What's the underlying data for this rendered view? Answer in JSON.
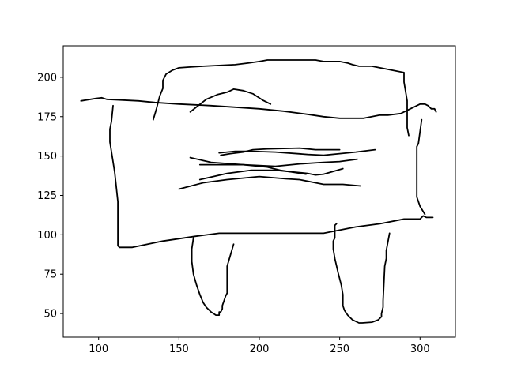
{
  "chart_data": {
    "type": "line",
    "title": "",
    "xlabel": "",
    "ylabel": "",
    "xlim": [
      78,
      322
    ],
    "ylim": [
      35,
      220
    ],
    "grid": false,
    "x_ticks": [
      100,
      150,
      200,
      250,
      300
    ],
    "y_ticks": [
      50,
      75,
      100,
      125,
      150,
      175,
      200
    ],
    "line_color": "#000000",
    "series": [
      {
        "x": [
          89,
          98,
          102,
          105,
          125,
          135,
          150,
          170,
          185,
          200,
          215,
          230,
          240,
          250,
          265,
          275,
          280,
          288,
          292,
          296,
          298,
          300,
          303,
          305,
          307,
          309,
          310
        ],
        "y": [
          185,
          186.5,
          187,
          186,
          185,
          184,
          183,
          182,
          181,
          180,
          178.5,
          176.5,
          175,
          174,
          174,
          176,
          176,
          177,
          179,
          181,
          182,
          183,
          183,
          182,
          180,
          180,
          178
        ]
      },
      {
        "x": [
          134,
          136,
          138,
          140,
          140,
          142,
          146,
          150,
          157,
          165,
          175,
          185,
          193,
          200,
          205,
          225,
          235,
          240,
          250,
          255,
          258,
          262,
          270,
          275,
          280,
          285,
          290,
          290,
          292,
          292,
          293
        ],
        "y": [
          173,
          180,
          188,
          193,
          198,
          202,
          204.5,
          206,
          206.5,
          207,
          207.5,
          208,
          209,
          210,
          211,
          211,
          211,
          210,
          210,
          209,
          208,
          207,
          207,
          206,
          205,
          204,
          203,
          197,
          185,
          168,
          163
        ]
      },
      {
        "x": [
          157,
          167,
          174,
          180,
          184,
          190,
          196,
          202,
          207
        ],
        "y": [
          178,
          186,
          189,
          190.5,
          192.5,
          191.5,
          189.5,
          185.5,
          183
        ]
      },
      {
        "x": [
          109,
          108,
          107,
          107,
          110,
          112,
          112,
          113,
          121,
          140,
          160,
          175,
          185,
          200,
          220,
          240,
          250,
          260,
          275,
          290,
          300,
          302,
          304,
          305,
          308
        ],
        "y": [
          182,
          172,
          167,
          159,
          140,
          121,
          93,
          92,
          92,
          96,
          99,
          101,
          101,
          101,
          101,
          101,
          103,
          105,
          107,
          110,
          110,
          112,
          111,
          111,
          111
        ]
      },
      {
        "x": [
          301,
          299,
          298,
          298,
          300,
          303
        ],
        "y": [
          173,
          158,
          156,
          124,
          118,
          113
        ]
      },
      {
        "x": [
          176,
          182,
          190,
          196,
          205,
          225,
          235,
          250
        ],
        "y": [
          150.5,
          151.5,
          152.5,
          154,
          154.5,
          155,
          154,
          154
        ]
      },
      {
        "x": [
          175,
          185,
          195,
          210,
          230,
          240,
          250,
          260,
          272
        ],
        "y": [
          152,
          153,
          153,
          152.5,
          151,
          150.5,
          151.5,
          152.5,
          154
        ]
      },
      {
        "x": [
          157,
          170,
          190,
          205,
          213,
          229
        ],
        "y": [
          149,
          146,
          144.5,
          143,
          141,
          138.5
        ]
      },
      {
        "x": [
          163,
          180,
          190,
          210,
          225,
          240,
          250,
          261
        ],
        "y": [
          144.5,
          144.5,
          144.5,
          143.5,
          145,
          146,
          146.5,
          148
        ]
      },
      {
        "x": [
          163,
          180,
          195,
          210,
          220,
          230,
          235,
          240,
          252
        ],
        "y": [
          135,
          139,
          141,
          141,
          140,
          139,
          138,
          138.5,
          142
        ]
      },
      {
        "x": [
          150,
          165,
          180,
          200,
          217,
          225,
          240,
          252,
          263
        ],
        "y": [
          129,
          133,
          135,
          137,
          135.5,
          135,
          132,
          132,
          131
        ]
      },
      {
        "x": [
          159,
          158,
          158,
          159,
          161,
          163,
          165,
          167,
          170,
          173,
          175,
          175,
          176,
          177,
          177,
          178,
          179,
          180,
          180,
          184
        ],
        "y": [
          98,
          91,
          83,
          75,
          68,
          62,
          57,
          54,
          51,
          49,
          49,
          51,
          51,
          53,
          55,
          58,
          61,
          63,
          80,
          94
        ]
      },
      {
        "x": [
          248,
          247,
          247,
          246,
          246,
          247,
          249,
          251,
          252,
          252,
          253,
          255,
          258,
          262,
          264,
          270,
          274,
          276,
          276,
          277,
          277,
          278,
          279,
          279,
          281
        ],
        "y": [
          107,
          106,
          98,
          96,
          91,
          85,
          76,
          68,
          62,
          55,
          52,
          49,
          46,
          44,
          44,
          44.5,
          46,
          48,
          50,
          54,
          58,
          80,
          85,
          90,
          101
        ]
      }
    ]
  }
}
